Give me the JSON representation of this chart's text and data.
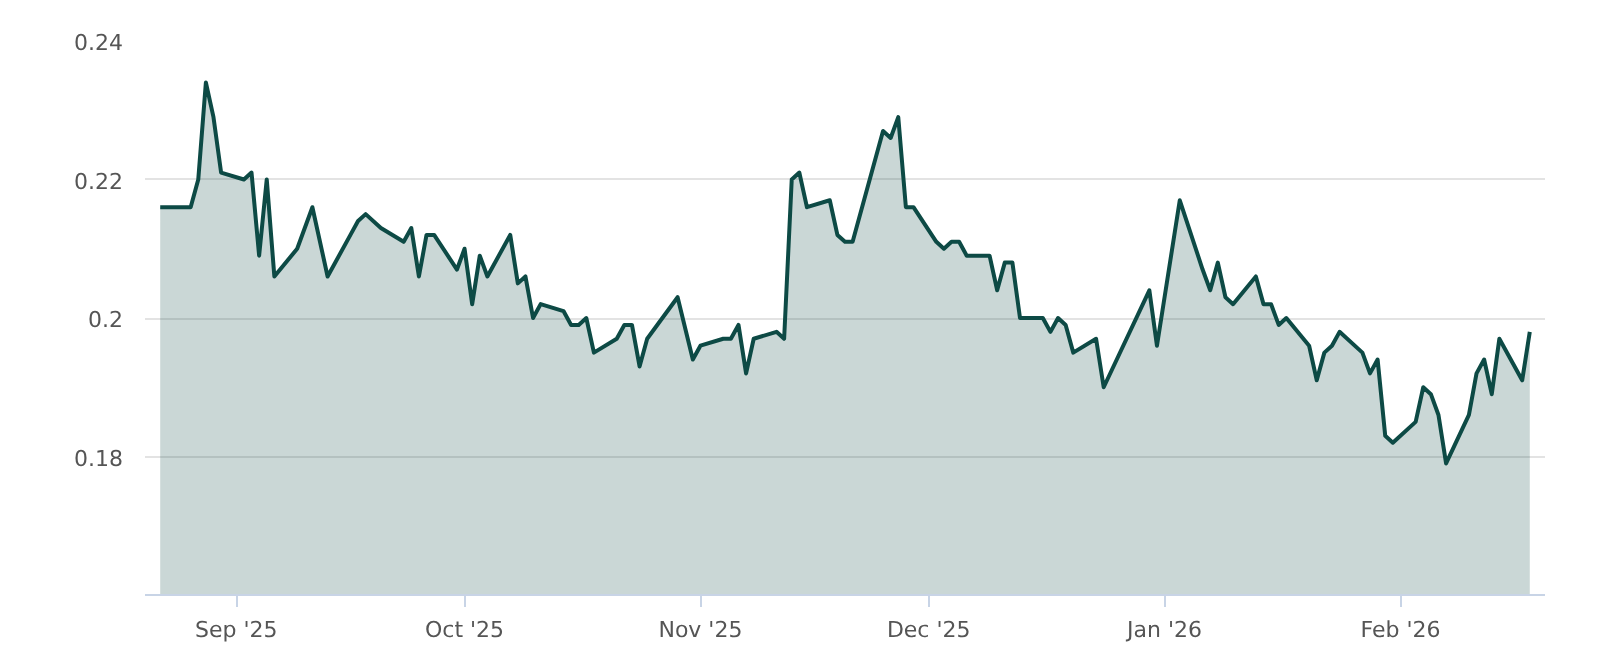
{
  "chart_data": {
    "type": "area",
    "x": [
      "2025-08-22",
      "2025-08-26",
      "2025-08-27",
      "2025-08-28",
      "2025-08-29",
      "2025-08-30",
      "2025-09-02",
      "2025-09-03",
      "2025-09-04",
      "2025-09-05",
      "2025-09-06",
      "2025-09-09",
      "2025-09-11",
      "2025-09-13",
      "2025-09-16",
      "2025-09-17",
      "2025-09-18",
      "2025-09-20",
      "2025-09-23",
      "2025-09-24",
      "2025-09-25",
      "2025-09-26",
      "2025-09-27",
      "2025-09-30",
      "2025-10-01",
      "2025-10-02",
      "2025-10-03",
      "2025-10-04",
      "2025-10-07",
      "2025-10-08",
      "2025-10-09",
      "2025-10-10",
      "2025-10-11",
      "2025-10-14",
      "2025-10-15",
      "2025-10-16",
      "2025-10-17",
      "2025-10-18",
      "2025-10-21",
      "2025-10-22",
      "2025-10-23",
      "2025-10-24",
      "2025-10-25",
      "2025-10-29",
      "2025-10-31",
      "2025-11-01",
      "2025-11-04",
      "2025-11-05",
      "2025-11-06",
      "2025-11-07",
      "2025-11-08",
      "2025-11-11",
      "2025-11-12",
      "2025-11-13",
      "2025-11-14",
      "2025-11-15",
      "2025-11-18",
      "2025-11-19",
      "2025-11-20",
      "2025-11-21",
      "2025-11-25",
      "2025-11-26",
      "2025-11-27",
      "2025-11-28",
      "2025-11-29",
      "2025-12-02",
      "2025-12-03",
      "2025-12-04",
      "2025-12-05",
      "2025-12-06",
      "2025-12-09",
      "2025-12-10",
      "2025-12-11",
      "2025-12-12",
      "2025-12-13",
      "2025-12-16",
      "2025-12-17",
      "2025-12-18",
      "2025-12-19",
      "2025-12-20",
      "2025-12-23",
      "2025-12-24",
      "2025-12-30",
      "2025-12-31",
      "2026-01-03",
      "2026-01-06",
      "2026-01-07",
      "2026-01-08",
      "2026-01-09",
      "2026-01-10",
      "2026-01-13",
      "2026-01-14",
      "2026-01-15",
      "2026-01-16",
      "2026-01-17",
      "2026-01-20",
      "2026-01-21",
      "2026-01-22",
      "2026-01-23",
      "2026-01-24",
      "2026-01-27",
      "2026-01-28",
      "2026-01-29",
      "2026-01-30",
      "2026-01-31",
      "2026-02-03",
      "2026-02-04",
      "2026-02-05",
      "2026-02-06",
      "2026-02-07",
      "2026-02-10",
      "2026-02-11",
      "2026-02-12",
      "2026-02-13",
      "2026-02-14",
      "2026-02-17",
      "2026-02-18"
    ],
    "series": [
      {
        "color": "#0d4a45",
        "values": [
          0.216,
          0.216,
          0.22,
          0.234,
          0.229,
          0.221,
          0.22,
          0.221,
          0.209,
          0.22,
          0.206,
          0.21,
          0.216,
          0.206,
          0.212,
          0.214,
          0.215,
          0.213,
          0.211,
          0.213,
          0.206,
          0.212,
          0.212,
          0.207,
          0.21,
          0.202,
          0.209,
          0.206,
          0.212,
          0.205,
          0.206,
          0.2,
          0.202,
          0.201,
          0.199,
          0.199,
          0.2,
          0.195,
          0.197,
          0.199,
          0.199,
          0.193,
          0.197,
          0.203,
          0.194,
          0.196,
          0.197,
          0.197,
          0.199,
          0.192,
          0.197,
          0.198,
          0.197,
          0.22,
          0.221,
          0.216,
          0.217,
          0.212,
          0.211,
          0.211,
          0.227,
          0.226,
          0.229,
          0.216,
          0.216,
          0.211,
          0.21,
          0.211,
          0.211,
          0.209,
          0.209,
          0.204,
          0.208,
          0.208,
          0.2,
          0.2,
          0.198,
          0.2,
          0.199,
          0.195,
          0.197,
          0.19,
          0.204,
          0.196,
          0.217,
          0.207,
          0.204,
          0.208,
          0.203,
          0.202,
          0.206,
          0.202,
          0.202,
          0.199,
          0.2,
          0.196,
          0.191,
          0.195,
          0.196,
          0.198,
          0.195,
          0.192,
          0.194,
          0.183,
          0.182,
          0.185,
          0.19,
          0.189,
          0.186,
          0.179,
          0.186,
          0.192,
          0.194,
          0.189,
          0.197,
          0.191,
          0.198
        ]
      }
    ],
    "xlim": [
      "2025-08-20",
      "2026-02-20"
    ],
    "xticks": [
      {
        "value": "2025-09-01",
        "label": "Sep '25"
      },
      {
        "value": "2025-10-01",
        "label": "Oct '25"
      },
      {
        "value": "2025-11-01",
        "label": "Nov '25"
      },
      {
        "value": "2025-12-01",
        "label": "Dec '25"
      },
      {
        "value": "2026-01-01",
        "label": "Jan '26"
      },
      {
        "value": "2026-02-01",
        "label": "Feb '26"
      }
    ],
    "ylim": [
      0.16,
      0.24
    ],
    "yticks": [
      0.18,
      0.2,
      0.22,
      0.24
    ],
    "grid": "y"
  }
}
